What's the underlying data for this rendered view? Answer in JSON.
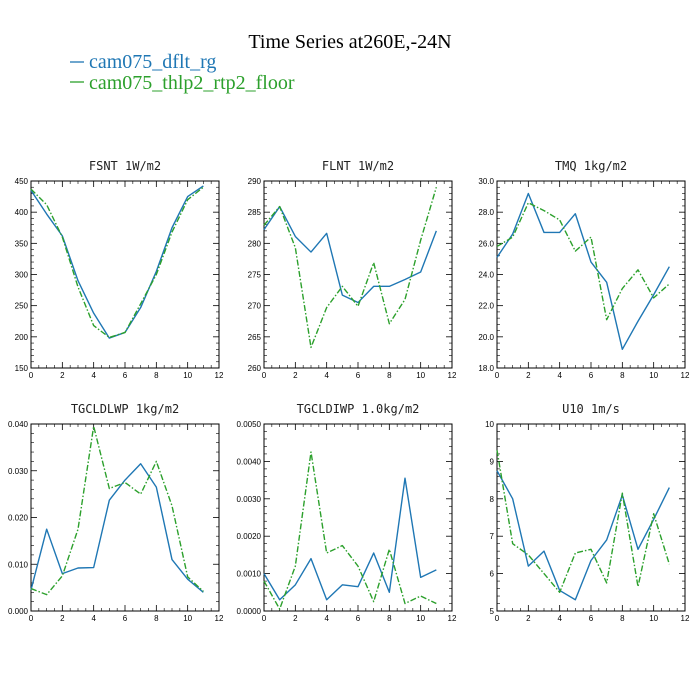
{
  "figure": {
    "title": "Time Series at260E,-24N",
    "legend": [
      {
        "label": "cam075_dflt_rg",
        "color": "#1f77b4"
      },
      {
        "label": "cam075_thlp2_rtp2_floor",
        "color": "#2ca02c"
      }
    ]
  },
  "chart_data": [
    {
      "type": "line",
      "title": "FSNT   1W/m2",
      "x": [
        0,
        1,
        2,
        3,
        4,
        5,
        6,
        7,
        8,
        9,
        10,
        11
      ],
      "xlim": [
        0,
        12
      ],
      "xticks": [
        0,
        2,
        4,
        6,
        8,
        10,
        12
      ],
      "xtick_labels": [
        "0",
        "2",
        "4",
        "6",
        "8",
        "10",
        "12"
      ],
      "ylim": [
        150,
        450
      ],
      "yticks": [
        150,
        200,
        250,
        300,
        350,
        400,
        450
      ],
      "ytick_labels": [
        "150",
        "200",
        "250",
        "300",
        "350",
        "400",
        "450"
      ],
      "series": [
        {
          "name": "cam075_dflt_rg",
          "color": "#1f77b4",
          "dash": false,
          "values": [
            435,
            397,
            362,
            290,
            238,
            198,
            207,
            247,
            305,
            375,
            425,
            442
          ]
        },
        {
          "name": "cam075_thlp2_rtp2_floor",
          "color": "#2ca02c",
          "dash": true,
          "values": [
            437,
            412,
            360,
            280,
            218,
            199,
            207,
            253,
            300,
            368,
            420,
            440
          ]
        }
      ]
    },
    {
      "type": "line",
      "title": "FLNT   1W/m2",
      "x": [
        0,
        1,
        2,
        3,
        4,
        5,
        6,
        7,
        8,
        9,
        10,
        11
      ],
      "xlim": [
        0,
        12
      ],
      "xticks": [
        0,
        2,
        4,
        6,
        8,
        10,
        12
      ],
      "xtick_labels": [
        "0",
        "2",
        "4",
        "6",
        "8",
        "10",
        "12"
      ],
      "ylim": [
        260,
        290
      ],
      "yticks": [
        260,
        265,
        270,
        275,
        280,
        285,
        290
      ],
      "ytick_labels": [
        "260",
        "265",
        "270",
        "275",
        "280",
        "285",
        "290"
      ],
      "series": [
        {
          "name": "cam075_dflt_rg",
          "color": "#1f77b4",
          "dash": false,
          "values": [
            282.2,
            285.9,
            281.1,
            278.6,
            281.6,
            271.7,
            270.5,
            273.1,
            273.1,
            274.2,
            275.4,
            282.0
          ]
        },
        {
          "name": "cam075_thlp2_rtp2_floor",
          "color": "#2ca02c",
          "dash": true,
          "values": [
            282.9,
            285.9,
            279.3,
            263.3,
            269.7,
            273.1,
            269.9,
            276.9,
            267.1,
            271.0,
            280.5,
            289.0
          ]
        }
      ]
    },
    {
      "type": "line",
      "title": "TMQ   1kg/m2",
      "x": [
        0,
        1,
        2,
        3,
        4,
        5,
        6,
        7,
        8,
        9,
        10,
        11
      ],
      "xlim": [
        0,
        12
      ],
      "xticks": [
        0,
        2,
        4,
        6,
        8,
        10,
        12
      ],
      "xtick_labels": [
        "0",
        "2",
        "4",
        "6",
        "8",
        "10",
        "12"
      ],
      "ylim": [
        18,
        30
      ],
      "yticks": [
        18,
        20,
        22,
        24,
        26,
        28,
        30
      ],
      "ytick_labels": [
        "18.0",
        "20.0",
        "22.0",
        "24.0",
        "26.0",
        "28.0",
        "30.0"
      ],
      "series": [
        {
          "name": "cam075_dflt_rg",
          "color": "#1f77b4",
          "dash": false,
          "values": [
            25.1,
            26.6,
            29.2,
            26.7,
            26.7,
            27.9,
            24.8,
            23.5,
            19.2,
            21.0,
            22.7,
            24.5
          ]
        },
        {
          "name": "cam075_thlp2_rtp2_floor",
          "color": "#2ca02c",
          "dash": true,
          "values": [
            25.8,
            26.4,
            28.6,
            28.1,
            27.5,
            25.5,
            26.4,
            21.1,
            23.1,
            24.3,
            22.5,
            23.4
          ]
        }
      ]
    },
    {
      "type": "line",
      "title": "TGCLDLWP   1kg/m2",
      "x": [
        0,
        1,
        2,
        3,
        4,
        5,
        6,
        7,
        8,
        9,
        10,
        11
      ],
      "xlim": [
        0,
        12
      ],
      "xticks": [
        0,
        2,
        4,
        6,
        8,
        10,
        12
      ],
      "xtick_labels": [
        "0",
        "2",
        "4",
        "6",
        "8",
        "10",
        "12"
      ],
      "ylim": [
        0,
        0.04
      ],
      "yticks": [
        0,
        0.01,
        0.02,
        0.03,
        0.04
      ],
      "ytick_labels": [
        "0.000",
        "0.010",
        "0.020",
        "0.030",
        "0.040"
      ],
      "series": [
        {
          "name": "cam075_dflt_rg",
          "color": "#1f77b4",
          "dash": false,
          "values": [
            0.0045,
            0.0175,
            0.008,
            0.0092,
            0.0093,
            0.0237,
            0.028,
            0.0315,
            0.0265,
            0.011,
            0.0068,
            0.004
          ]
        },
        {
          "name": "cam075_thlp2_rtp2_floor",
          "color": "#2ca02c",
          "dash": true,
          "values": [
            0.0048,
            0.0035,
            0.0075,
            0.0175,
            0.0395,
            0.0262,
            0.0275,
            0.025,
            0.032,
            0.0225,
            0.0073,
            0.0042
          ]
        }
      ]
    },
    {
      "type": "line",
      "title": "TGCLDIWP   1.0kg/m2",
      "x": [
        0,
        1,
        2,
        3,
        4,
        5,
        6,
        7,
        8,
        9,
        10,
        11
      ],
      "xlim": [
        0,
        12
      ],
      "xticks": [
        0,
        2,
        4,
        6,
        8,
        10,
        12
      ],
      "xtick_labels": [
        "0",
        "2",
        "4",
        "6",
        "8",
        "10",
        "12"
      ],
      "ylim": [
        0,
        0.005
      ],
      "yticks": [
        0,
        0.001,
        0.002,
        0.003,
        0.004,
        0.005
      ],
      "ytick_labels": [
        "0.0000",
        "0.0010",
        "0.0020",
        "0.0030",
        "0.0040",
        "0.0050"
      ],
      "series": [
        {
          "name": "cam075_dflt_rg",
          "color": "#1f77b4",
          "dash": false,
          "values": [
            0.001,
            0.0003,
            0.0007,
            0.0014,
            0.0003,
            0.0007,
            0.00065,
            0.00155,
            0.0005,
            0.00355,
            0.0009,
            0.0011
          ]
        },
        {
          "name": "cam075_thlp2_rtp2_floor",
          "color": "#2ca02c",
          "dash": true,
          "values": [
            0.0008,
            5e-05,
            0.0012,
            0.00425,
            0.00155,
            0.00175,
            0.0012,
            0.00025,
            0.00165,
            0.0002,
            0.0004,
            0.0002
          ]
        }
      ]
    },
    {
      "type": "line",
      "title": "U10   1m/s",
      "x": [
        0,
        1,
        2,
        3,
        4,
        5,
        6,
        7,
        8,
        9,
        10,
        11
      ],
      "xlim": [
        0,
        12
      ],
      "xticks": [
        0,
        2,
        4,
        6,
        8,
        10,
        12
      ],
      "xtick_labels": [
        "0",
        "2",
        "4",
        "6",
        "8",
        "10",
        "12"
      ],
      "ylim": [
        5,
        10
      ],
      "yticks": [
        5,
        6,
        7,
        8,
        9,
        10
      ],
      "ytick_labels": [
        "5",
        "6",
        "7",
        "8",
        "9",
        "10"
      ],
      "series": [
        {
          "name": "cam075_dflt_rg",
          "color": "#1f77b4",
          "dash": false,
          "values": [
            8.75,
            8.0,
            6.2,
            6.6,
            5.55,
            5.3,
            6.35,
            6.9,
            8.1,
            6.65,
            7.45,
            8.3
          ]
        },
        {
          "name": "cam075_thlp2_rtp2_floor",
          "color": "#2ca02c",
          "dash": true,
          "values": [
            9.3,
            6.8,
            6.5,
            6.0,
            5.5,
            6.55,
            6.65,
            5.75,
            8.15,
            5.65,
            7.6,
            6.25
          ]
        }
      ]
    }
  ]
}
